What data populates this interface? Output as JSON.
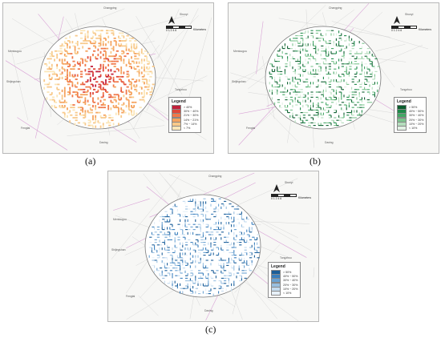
{
  "captions": {
    "a": "(a)",
    "b": "(b)",
    "c": "(c)"
  },
  "legend_title": "Legend",
  "scale": {
    "ticks": "0 1 2   4   6",
    "unit": "Kilometers"
  },
  "north_label": "N",
  "place_labels": [
    "Changping",
    "Shunyi",
    "Mentougou",
    "Shijingshan",
    "Fengtai",
    "Daxing",
    "Tongzhou",
    "Chaoyang",
    "Haidian"
  ],
  "maps": {
    "a": {
      "legend_items": [
        "> 40%",
        "30% ~ 40%",
        "21% ~ 30%",
        "14% ~ 21%",
        "7% ~ 14%",
        "< 7%"
      ],
      "colors": [
        "#c21f3a",
        "#e0483a",
        "#f0784a",
        "#f5a35e",
        "#f8c98a",
        "#fbe6b8"
      ]
    },
    "b": {
      "legend_items": [
        "> 50%",
        "40% ~ 50%",
        "30% ~ 40%",
        "20% ~ 30%",
        "10% ~ 20%",
        "< 10%"
      ],
      "colors": [
        "#0b5e2e",
        "#1f8a4a",
        "#44a866",
        "#7cc48e",
        "#b4ddbc",
        "#e2f1e4"
      ]
    },
    "c": {
      "legend_items": [
        "> 50%",
        "40% ~ 50%",
        "30% ~ 40%",
        "20% ~ 30%",
        "10% ~ 20%",
        "< 10%"
      ],
      "colors": [
        "#1a5e99",
        "#3a7fbd",
        "#6aa2d2",
        "#98bfe0",
        "#c4dbef",
        "#e6f0f8"
      ]
    }
  }
}
